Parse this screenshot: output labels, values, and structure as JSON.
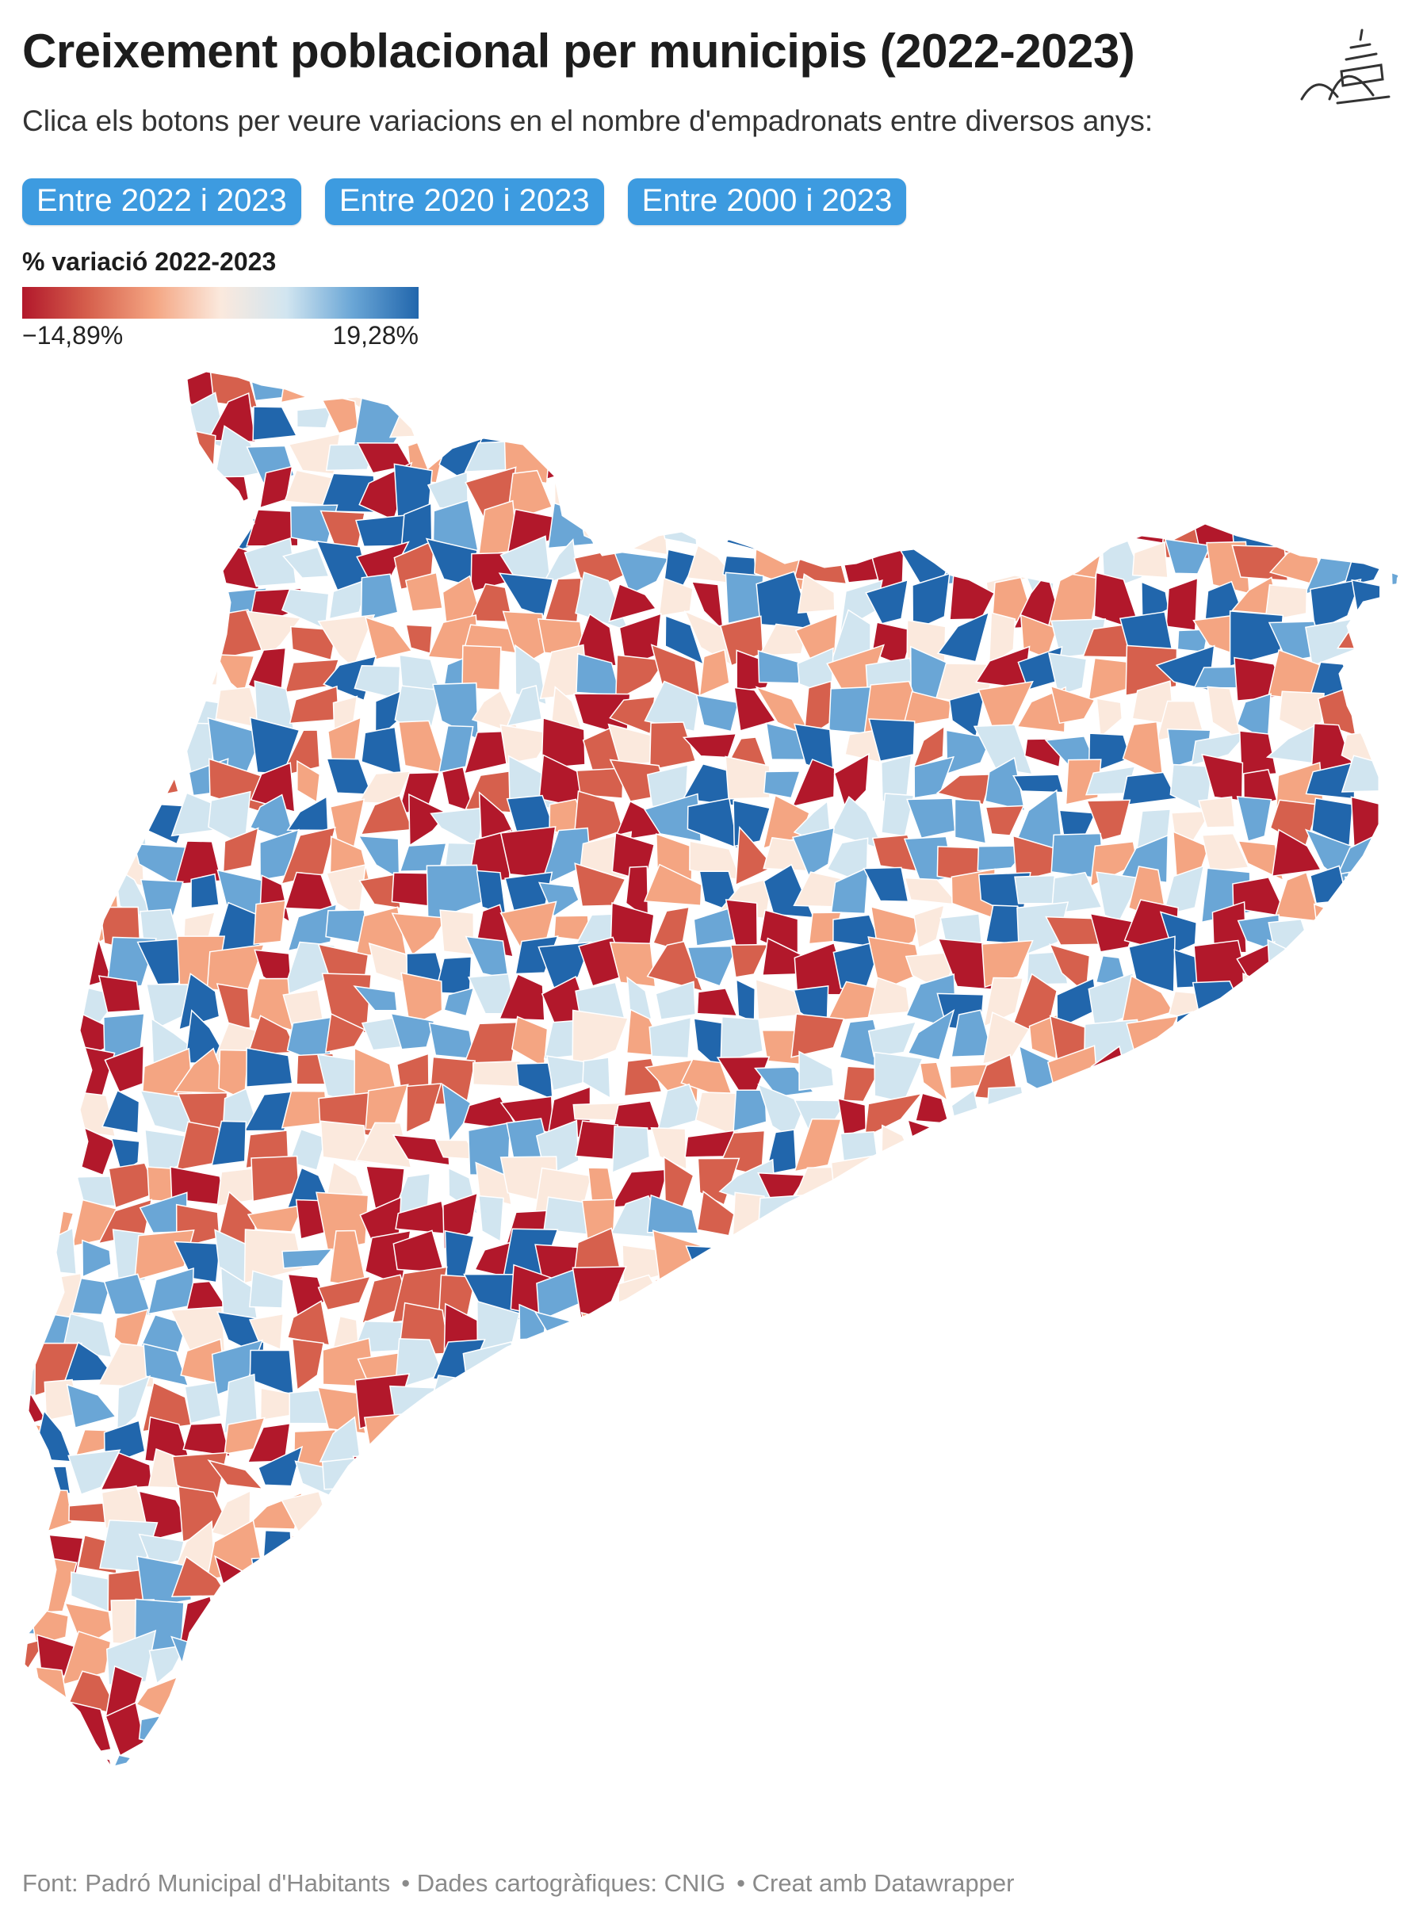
{
  "header": {
    "title": "Creixement poblacional per municipis (2022-2023)",
    "subtitle": "Clica els botons per veure variacions en el nombre d'empadronats entre diversos anys:"
  },
  "buttons": [
    {
      "label": "Entre 2022 i 2023"
    },
    {
      "label": "Entre 2020 i 2023"
    },
    {
      "label": "Entre 2000 i 2023"
    }
  ],
  "legend": {
    "title": "% variació 2022-2023",
    "min_label": "−14,89%",
    "max_label": "19,28%",
    "min_value": -14.89,
    "max_value": 19.28,
    "colors": [
      "#b2182b",
      "#d6604d",
      "#f4a582",
      "#fbe9dd",
      "#d1e5f0",
      "#6aa6d6",
      "#2166ac"
    ]
  },
  "map": {
    "region": "Catalunya",
    "fill_by": "% variació 2022-2023",
    "background": "#ffffff",
    "border_color": "#ffffff"
  },
  "footer": {
    "items": [
      "Font: Padró Municipal d'Habitants",
      "• Dades cartogràfiques: CNIG",
      "• Creat amb Datawrapper"
    ]
  },
  "logo": {
    "icon": "ship-logo-icon"
  }
}
